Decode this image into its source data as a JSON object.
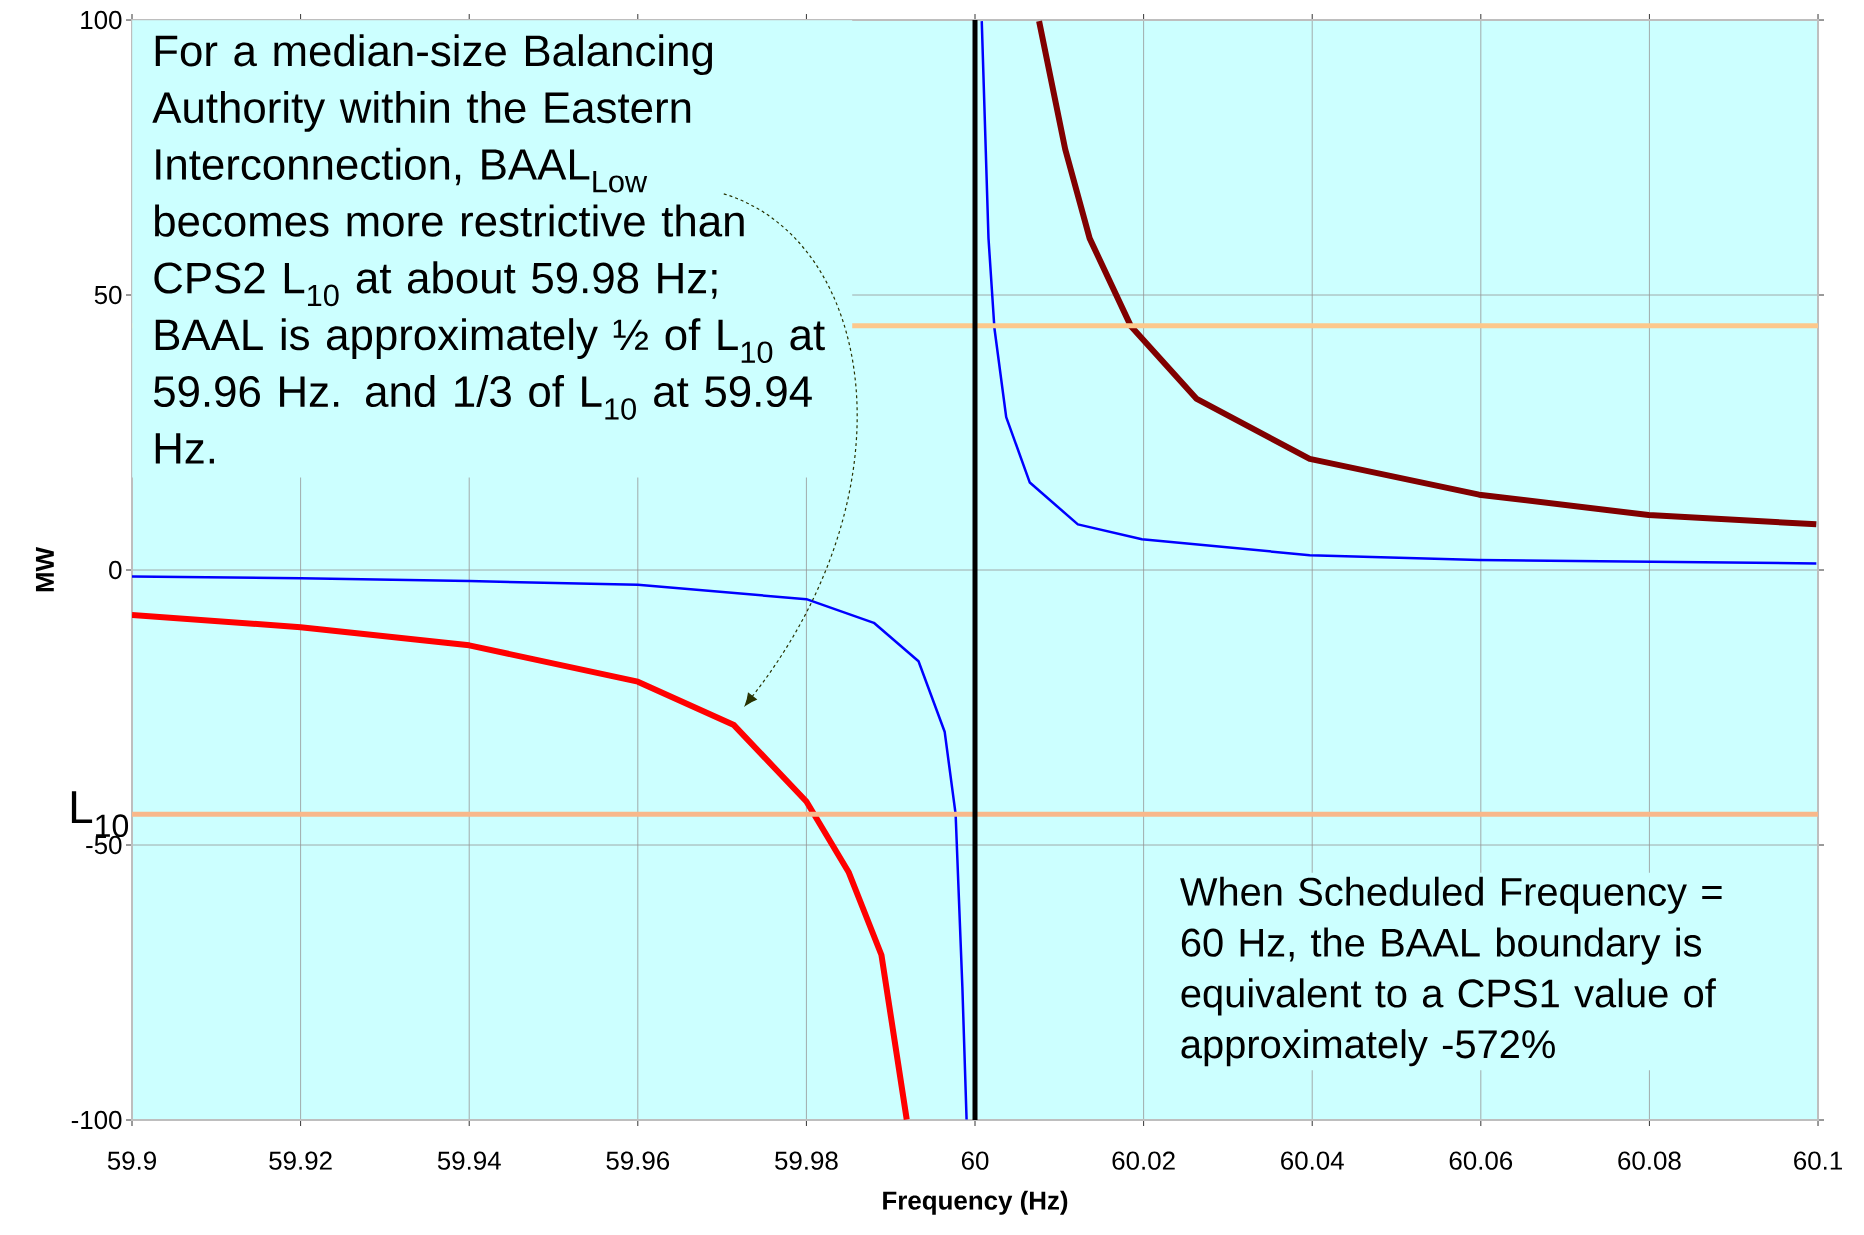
{
  "chart_data": {
    "type": "line",
    "xlabel": "Frequency (Hz)",
    "ylabel": "MW",
    "xlim": [
      59.9,
      60.1
    ],
    "ylim": [
      -100,
      100
    ],
    "xticks": [
      59.9,
      59.92,
      59.94,
      59.96,
      59.98,
      60,
      60.02,
      60.04,
      60.06,
      60.08,
      60.1
    ],
    "yticks": [
      -100,
      -50,
      0,
      50,
      100
    ],
    "grid": true,
    "series": [
      {
        "color": "#0000ff",
        "x": [
          59.9,
          59.92,
          59.94,
          59.96,
          59.98,
          59.988,
          59.9933,
          59.9964,
          59.9977,
          59.9985,
          59.999
        ],
        "values": [
          -1.2,
          -1.5,
          -2.0,
          -2.7,
          -5.3,
          -9.6,
          -16.6,
          -29.4,
          -44.4,
          -75.8,
          -99.9
        ]
      },
      {
        "color": "#0000ff",
        "x": [
          60.0008,
          60.0016,
          60.0023,
          60.0037,
          60.0065,
          60.0122,
          60.0198,
          60.0397,
          60.0598,
          60.0998
        ],
        "values": [
          99.8,
          60.3,
          44,
          27.8,
          15.9,
          8.3,
          5.6,
          2.7,
          1.8,
          1.2
        ]
      },
      {
        "color": "#ff0000",
        "x": [
          59.9,
          59.92,
          59.94,
          59.96,
          59.9714,
          59.98,
          59.985,
          59.9889,
          59.9919
        ],
        "values": [
          -8.2,
          -10.4,
          -13.7,
          -20.3,
          -28.2,
          -42.1,
          -54.9,
          -70,
          -99.9
        ]
      },
      {
        "color": "#800000",
        "x": [
          60.0076,
          60.0107,
          60.0136,
          60.0185,
          60.0263,
          60.0397,
          60.0598,
          60.0799,
          60.0998
        ],
        "values": [
          99.8,
          76.5,
          60.3,
          44.3,
          31.1,
          20.2,
          13.7,
          10.0,
          8.3
        ]
      }
    ],
    "ref_lines": [
      {
        "axis": "y",
        "value": -44.4,
        "label": "L$_{10}$",
        "color": "#f8b88b"
      },
      {
        "axis": "y",
        "value": 44.4,
        "color": "#fcc88c"
      },
      {
        "axis": "x",
        "value": 60,
        "color": "#000000"
      }
    ],
    "annotations": [
      "For a median-size Balancing Authority within the Eastern Interconnection, BAAL$_{Low}$ becomes more restrictive than CPS2 L$_{10}$ at about 59.98 Hz; BAAL is approximately ½ of L$_{10}$ at 59.96 Hz. and 1/3 of L$_{10}$ at 59.94 Hz.",
      "When Scheduled Frequency = 60 Hz, the BAAL boundary is equivalent to a CPS1 value of approximately -572%"
    ]
  }
}
